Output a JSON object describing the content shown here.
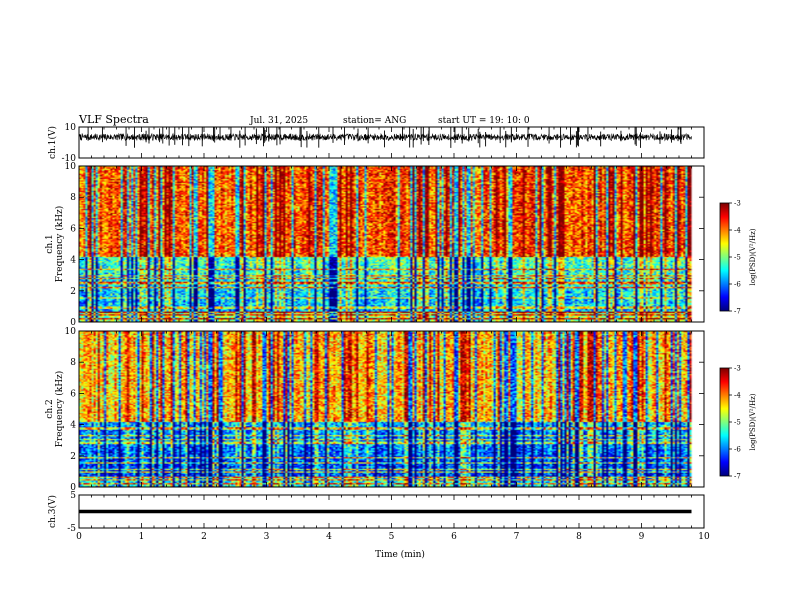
{
  "header": {
    "title": "VLF Spectra",
    "date": "Jul. 31, 2025",
    "station": "station= ANG",
    "start": "start  UT =  19: 10: 0"
  },
  "chart_data": [
    {
      "type": "line",
      "name": "ch1-waveform",
      "ylabel": "ch.1(V)",
      "ylim": [
        -10,
        10
      ],
      "ytick_labels": [
        "10",
        "-10"
      ],
      "xlim": [
        0,
        10
      ],
      "data_end_min": 9.8,
      "baseline": 3.5,
      "spread": 2.2,
      "spike_count": 70
    },
    {
      "type": "heatmap",
      "name": "ch1-spectrogram",
      "ylabel": "ch.1\nFrequency (kHz)",
      "ylim": [
        0,
        10
      ],
      "ytick_labels": [
        "0",
        "2",
        "4",
        "6",
        "8",
        "10"
      ],
      "xlim": [
        0,
        10
      ],
      "data_end_min": 9.8,
      "colorbar": {
        "label": "log(PSD)(V²/Hz)",
        "range": [
          -7,
          -3
        ],
        "tick_labels": [
          "-3",
          "-4",
          "-5",
          "-6",
          "-7"
        ]
      },
      "high_band_level": 0.8,
      "low_band_level": 0.45,
      "seed": 11
    },
    {
      "type": "heatmap",
      "name": "ch2-spectrogram",
      "ylabel": "ch.2\nFrequency (kHz)",
      "ylim": [
        0,
        10
      ],
      "ytick_labels": [
        "0",
        "2",
        "4",
        "6",
        "8",
        "10"
      ],
      "xlim": [
        0,
        10
      ],
      "data_end_min": 9.8,
      "colorbar": {
        "label": "log(PSD)(V²/Hz)",
        "range": [
          -7,
          -3
        ],
        "tick_labels": [
          "-3",
          "-4",
          "-5",
          "-6",
          "-7"
        ]
      },
      "high_band_level": 0.68,
      "low_band_level": 0.3,
      "seed": 23
    },
    {
      "type": "line",
      "name": "ch3-waveform",
      "ylabel": "ch.3(V)",
      "ylim": [
        -5,
        5
      ],
      "ytick_labels": [
        "5",
        "-5"
      ],
      "xlim": [
        0,
        10
      ],
      "data_end_min": 9.8,
      "value": 0.0
    }
  ],
  "xaxis": {
    "label": "Time (min)",
    "ticks": [
      "0",
      "1",
      "2",
      "3",
      "4",
      "5",
      "6",
      "7",
      "8",
      "9",
      "10"
    ]
  }
}
